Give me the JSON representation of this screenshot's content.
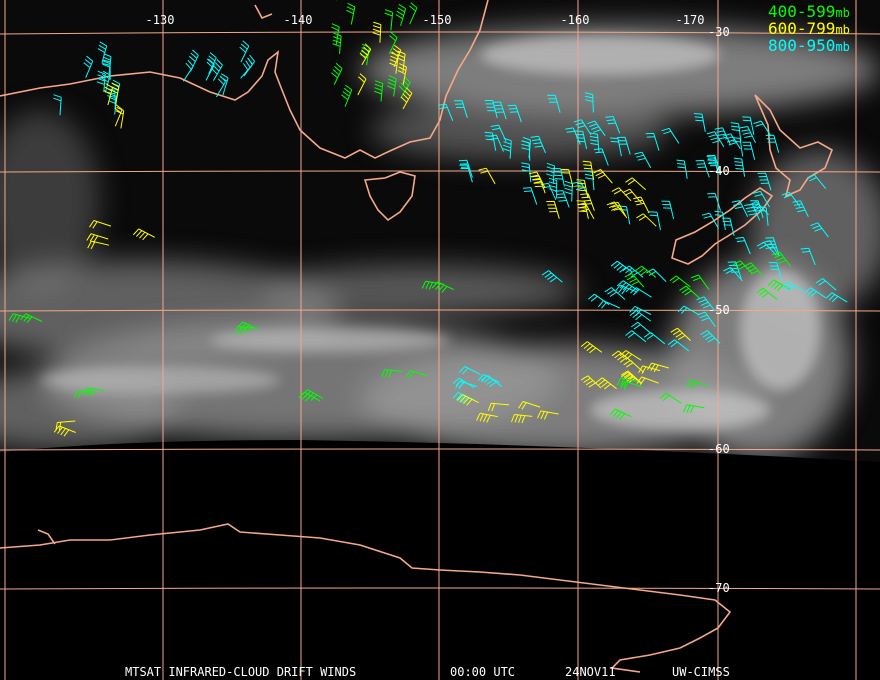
{
  "map": {
    "longitude_labels": [
      "-130",
      "-140",
      "-150",
      "-160",
      "-170"
    ],
    "latitude_labels": [
      "-30",
      "-40",
      "-50",
      "-60",
      "-70"
    ],
    "legend": [
      {
        "label": "400-599",
        "unit": "mb",
        "color": "#00ff00"
      },
      {
        "label": "600-799",
        "unit": "mb",
        "color": "#ffff00"
      },
      {
        "label": "800-950",
        "unit": "mb",
        "color": "#00ffff"
      }
    ],
    "footer": [
      "MTSAT INFRARED-CLOUD DRIFT WINDS",
      "00:00 UTC",
      "24NOV11",
      "UW-CIMSS"
    ]
  }
}
